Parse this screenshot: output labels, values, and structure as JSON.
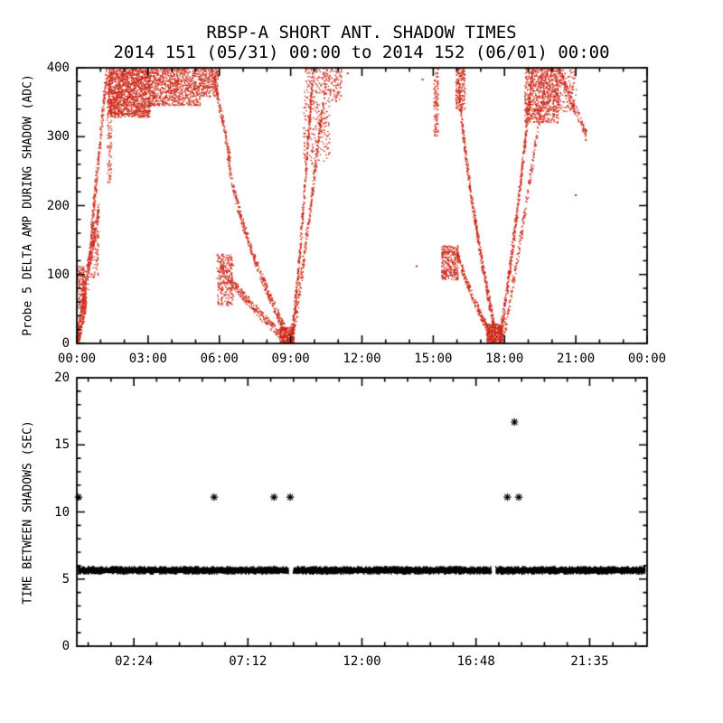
{
  "colors": {
    "background": "#ffffff",
    "axis": "#000000",
    "scatter_red": "#cd2a1a",
    "marker_black": "#000000"
  },
  "chart_data": [
    {
      "type": "scatter",
      "panel": "top",
      "title": "RBSP-A SHORT ANT. SHADOW TIMES",
      "subtitle": "2014 151 (05/31) 00:00 to 2014 152 (06/01) 00:00",
      "ylabel": "Probe 5 DELTA AMP DURING SHADOW (ADC)",
      "ylim": [
        0,
        400
      ],
      "yticks": [
        0,
        100,
        200,
        300,
        400
      ],
      "y_minor_step": 20,
      "xlim": [
        0,
        24
      ],
      "x_minor_anchor": 0,
      "x_minor_step": 1,
      "xticks": [
        {
          "v": 0,
          "label": "00:00"
        },
        {
          "v": 3,
          "label": "03:00"
        },
        {
          "v": 6,
          "label": "06:00"
        },
        {
          "v": 9,
          "label": "09:00"
        },
        {
          "v": 12,
          "label": "12:00"
        },
        {
          "v": 15,
          "label": "15:00"
        },
        {
          "v": 18,
          "label": "18:00"
        },
        {
          "v": 21,
          "label": "21:00"
        },
        {
          "v": 24,
          "label": "00:00"
        }
      ],
      "series_color": "#cd2a1a",
      "point_segments": [
        {
          "k": "curve",
          "x0": 0.0,
          "x1": 0.4,
          "y0": 3,
          "y1": 70,
          "exp": 1,
          "spread": 38,
          "n": 260
        },
        {
          "k": "blob",
          "x0": 0.05,
          "x1": 0.32,
          "y0": 50,
          "y1": 112,
          "n": 130
        },
        {
          "k": "curve",
          "x0": 0.22,
          "x1": 0.95,
          "y0": 65,
          "y1": 195,
          "exp": 1,
          "spread": 26,
          "n": 210
        },
        {
          "k": "blob",
          "x0": 0.58,
          "x1": 0.92,
          "y0": 95,
          "y1": 175,
          "n": 100
        },
        {
          "k": "curve",
          "x0": 0.45,
          "x1": 1.28,
          "y0": 80,
          "y1": 400,
          "exp": 0.9,
          "spread": 30,
          "n": 300
        },
        {
          "k": "col",
          "x": 1.38,
          "sx": 0.1,
          "y0": 230,
          "y1": 400,
          "n": 140
        },
        {
          "k": "blob",
          "x0": 1.32,
          "x1": 3.1,
          "y0": 328,
          "y1": 400,
          "n": 1500
        },
        {
          "k": "blob",
          "x0": 3.1,
          "x1": 5.2,
          "y0": 345,
          "y1": 400,
          "n": 900
        },
        {
          "k": "blob",
          "x0": 5.2,
          "x1": 5.95,
          "y0": 358,
          "y1": 400,
          "n": 240
        },
        {
          "k": "curve",
          "x0": 5.7,
          "x1": 6.45,
          "y0": 400,
          "y1": 268,
          "exp": 1,
          "spread": 16,
          "n": 150
        },
        {
          "k": "curve",
          "x0": 6.3,
          "x1": 9.0,
          "y0": 295,
          "y1": 2,
          "exp": 0.65,
          "spread": 16,
          "n": 420
        },
        {
          "k": "curve",
          "x0": 6.0,
          "x1": 8.9,
          "y0": 120,
          "y1": 2,
          "exp": 0.8,
          "spread": 14,
          "n": 320
        },
        {
          "k": "blob",
          "x0": 5.9,
          "x1": 6.6,
          "y0": 55,
          "y1": 130,
          "n": 260
        },
        {
          "k": "blob",
          "x0": 8.55,
          "x1": 9.15,
          "y0": 0,
          "y1": 24,
          "n": 220
        },
        {
          "k": "curve",
          "x0": 9.0,
          "x1": 9.95,
          "y0": 2,
          "y1": 400,
          "exp": 1.25,
          "spread": 24,
          "n": 380
        },
        {
          "k": "curve",
          "x0": 9.05,
          "x1": 10.55,
          "y0": 2,
          "y1": 400,
          "exp": 1.1,
          "spread": 26,
          "n": 330
        },
        {
          "k": "blob",
          "x0": 9.55,
          "x1": 10.65,
          "y0": 260,
          "y1": 400,
          "n": 320
        },
        {
          "k": "blob",
          "x0": 10.6,
          "x1": 11.15,
          "y0": 350,
          "y1": 400,
          "n": 90
        },
        {
          "k": "col",
          "x": 15.12,
          "sx": 0.1,
          "y0": 300,
          "y1": 400,
          "n": 110
        },
        {
          "k": "blob",
          "x0": 15.35,
          "x1": 16.05,
          "y0": 92,
          "y1": 142,
          "n": 300
        },
        {
          "k": "curve",
          "x0": 16.0,
          "x1": 17.55,
          "y0": 135,
          "y1": 2,
          "exp": 0.8,
          "spread": 13,
          "n": 260
        },
        {
          "k": "curve",
          "x0": 16.05,
          "x1": 17.7,
          "y0": 400,
          "y1": 2,
          "exp": 0.7,
          "spread": 20,
          "n": 520
        },
        {
          "k": "blob",
          "x0": 15.95,
          "x1": 16.35,
          "y0": 338,
          "y1": 400,
          "n": 180
        },
        {
          "k": "blob",
          "x0": 17.25,
          "x1": 17.9,
          "y0": 0,
          "y1": 28,
          "n": 320
        },
        {
          "k": "curve",
          "x0": 17.75,
          "x1": 19.2,
          "y0": 2,
          "y1": 400,
          "exp": 1.2,
          "spread": 22,
          "n": 480
        },
        {
          "k": "curve",
          "x0": 17.9,
          "x1": 19.7,
          "y0": 2,
          "y1": 380,
          "exp": 1.1,
          "spread": 20,
          "n": 260
        },
        {
          "k": "blob",
          "x0": 18.85,
          "x1": 20.3,
          "y0": 320,
          "y1": 400,
          "n": 800
        },
        {
          "k": "blob",
          "x0": 20.2,
          "x1": 21.05,
          "y0": 335,
          "y1": 400,
          "n": 140
        },
        {
          "k": "curve",
          "x0": 20.3,
          "x1": 21.45,
          "y0": 395,
          "y1": 302,
          "exp": 1,
          "spread": 16,
          "n": 160
        }
      ],
      "isolated_points": [
        [
          14.3,
          112
        ],
        [
          14.55,
          383
        ],
        [
          21.0,
          215
        ],
        [
          11.4,
          392
        ]
      ]
    },
    {
      "type": "scatter",
      "panel": "bottom",
      "ylabel": "TIME BETWEEN SHADOWS (SEC)",
      "ylim": [
        0,
        20
      ],
      "yticks": [
        0,
        5,
        10,
        15,
        20
      ],
      "y_minor_step": 1,
      "xlim": [
        0,
        24
      ],
      "x_minor_anchor": 2.4,
      "x_minor_step": 0.96,
      "xticks": [
        {
          "v": 2.4,
          "label": "02:24"
        },
        {
          "v": 7.2,
          "label": "07:12"
        },
        {
          "v": 12.0,
          "label": "12:00"
        },
        {
          "v": 16.8,
          "label": "16:48"
        },
        {
          "v": 21.583,
          "label": "21:35"
        }
      ],
      "band": {
        "y_low": 5.45,
        "y_high": 5.85,
        "x_start": 0.05,
        "x_end": 23.92,
        "gaps": [
          [
            8.92,
            9.12
          ],
          [
            17.45,
            17.63
          ]
        ],
        "n": 3000
      },
      "markers": {
        "symbol": "asterisk",
        "color": "#000000",
        "points": [
          [
            0.07,
            11.1
          ],
          [
            5.78,
            11.1
          ],
          [
            8.3,
            11.1
          ],
          [
            8.98,
            11.1
          ],
          [
            18.12,
            11.1
          ],
          [
            18.6,
            11.1
          ],
          [
            18.42,
            16.7
          ]
        ]
      }
    }
  ]
}
